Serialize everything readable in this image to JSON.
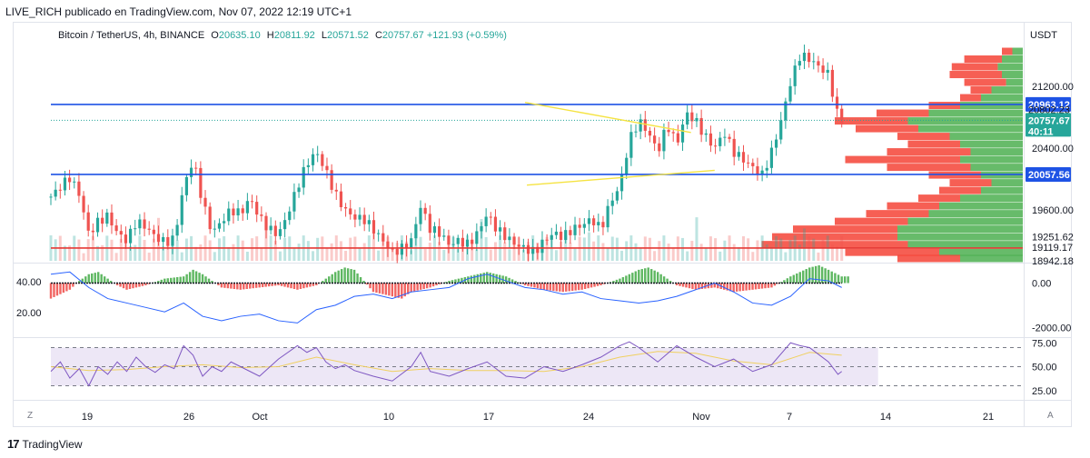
{
  "caption": "LIVE_RICH publicado en TradingView.com, Nov 07, 2022 12:19 UTC+1",
  "footer": {
    "logo": "17",
    "brand": "TradingView"
  },
  "legend": {
    "symbol": "Bitcoin / TetherUS, 4h, BINANCE",
    "o_label": "O",
    "o": "20635.10",
    "h_label": "H",
    "h": "20811.92",
    "l_label": "L",
    "l": "20571.52",
    "c_label": "C",
    "c": "20757.67",
    "change": "+121.93 (+0.59%)"
  },
  "buttons": {
    "zoom": "Z",
    "auto": "A"
  },
  "colors": {
    "up": "#26a69a",
    "down": "#ef5350",
    "blue": "#1e53e5",
    "red": "#e53935",
    "yellow": "#f5e342",
    "macd_line": "#2962ff",
    "rsi_line": "#7e57c2",
    "rsi_ma": "#f0d060",
    "rsi_band": "#ede7f6",
    "vp_up": "#4caf50",
    "vp_down": "#f44336"
  },
  "chart_data": [
    {
      "type": "candlestick",
      "currency": "USDT",
      "y_ticks": [
        "21200.00",
        "20400.00",
        "19600.00",
        "19251.62",
        "19119.17",
        "18942.18"
      ],
      "x_ticks": [
        "19",
        "26",
        "Oct",
        "10",
        "17",
        "24",
        "Nov",
        "7",
        "14",
        "21"
      ],
      "ylim": [
        18940,
        21750
      ],
      "levels": [
        {
          "price": 20963.12,
          "label": "20963.12",
          "color": "#1e53e5"
        },
        {
          "price": 20057.56,
          "label": "20057.56",
          "color": "#1e53e5"
        },
        {
          "price": 19105,
          "label": "",
          "color": "#e53935"
        }
      ],
      "last_price": {
        "price": 20757.67,
        "label": "20757.67",
        "countdown": "40:11",
        "hidden_label": "20802.23"
      },
      "trendlines": [
        {
          "x1": 0.5,
          "y1": 20990,
          "x2": 0.675,
          "y2": 20600
        },
        {
          "x1": 0.502,
          "y1": 19920,
          "x2": 0.7,
          "y2": 20110
        }
      ],
      "close_path": [
        [
          0.0,
          19770
        ],
        [
          0.01,
          19900
        ],
        [
          0.02,
          20020
        ],
        [
          0.03,
          19800
        ],
        [
          0.04,
          19280
        ],
        [
          0.05,
          19450
        ],
        [
          0.06,
          19520
        ],
        [
          0.07,
          19300
        ],
        [
          0.08,
          19200
        ],
        [
          0.09,
          19450
        ],
        [
          0.1,
          19380
        ],
        [
          0.11,
          19250
        ],
        [
          0.12,
          19180
        ],
        [
          0.13,
          19220
        ],
        [
          0.14,
          19900
        ],
        [
          0.15,
          20250
        ],
        [
          0.16,
          19700
        ],
        [
          0.17,
          19300
        ],
        [
          0.18,
          19450
        ],
        [
          0.19,
          19600
        ],
        [
          0.2,
          19550
        ],
        [
          0.21,
          19750
        ],
        [
          0.22,
          19500
        ],
        [
          0.23,
          19350
        ],
        [
          0.24,
          19280
        ],
        [
          0.25,
          19550
        ],
        [
          0.26,
          19900
        ],
        [
          0.27,
          20200
        ],
        [
          0.28,
          20350
        ],
        [
          0.29,
          20100
        ],
        [
          0.3,
          19800
        ],
        [
          0.31,
          19600
        ],
        [
          0.32,
          19500
        ],
        [
          0.33,
          19480
        ],
        [
          0.34,
          19350
        ],
        [
          0.35,
          19200
        ],
        [
          0.36,
          19050
        ],
        [
          0.37,
          19100
        ],
        [
          0.38,
          19200
        ],
        [
          0.39,
          19650
        ],
        [
          0.4,
          19350
        ],
        [
          0.41,
          19300
        ],
        [
          0.42,
          19150
        ],
        [
          0.43,
          19200
        ],
        [
          0.44,
          19150
        ],
        [
          0.45,
          19300
        ],
        [
          0.46,
          19550
        ],
        [
          0.47,
          19350
        ],
        [
          0.48,
          19250
        ],
        [
          0.49,
          19150
        ],
        [
          0.5,
          19100
        ],
        [
          0.51,
          19050
        ],
        [
          0.52,
          19200
        ],
        [
          0.53,
          19300
        ],
        [
          0.54,
          19250
        ],
        [
          0.55,
          19350
        ],
        [
          0.56,
          19400
        ],
        [
          0.57,
          19480
        ],
        [
          0.58,
          19350
        ],
        [
          0.59,
          19700
        ],
        [
          0.6,
          19900
        ],
        [
          0.61,
          20500
        ],
        [
          0.62,
          20750
        ],
        [
          0.63,
          20600
        ],
        [
          0.64,
          20350
        ],
        [
          0.65,
          20700
        ],
        [
          0.66,
          20450
        ],
        [
          0.67,
          20850
        ],
        [
          0.68,
          20750
        ],
        [
          0.69,
          20550
        ],
        [
          0.7,
          20400
        ],
        [
          0.71,
          20600
        ],
        [
          0.72,
          20350
        ],
        [
          0.73,
          20250
        ],
        [
          0.74,
          20150
        ],
        [
          0.75,
          20050
        ],
        [
          0.76,
          20350
        ],
        [
          0.77,
          20750
        ],
        [
          0.78,
          21250
        ],
        [
          0.79,
          21600
        ],
        [
          0.8,
          21550
        ],
        [
          0.81,
          21450
        ],
        [
          0.82,
          21350
        ],
        [
          0.83,
          20800
        ],
        [
          0.834,
          20757
        ]
      ],
      "volume_profile_note": "horizontal histogram at right edge",
      "volume_profile": [
        [
          21650,
          0.05,
          0.05
        ],
        [
          21550,
          0.1,
          0.18
        ],
        [
          21450,
          0.12,
          0.22
        ],
        [
          21350,
          0.1,
          0.25
        ],
        [
          21250,
          0.08,
          0.2
        ],
        [
          21150,
          0.15,
          0.1
        ],
        [
          21050,
          0.2,
          0.1
        ],
        [
          20950,
          0.3,
          0.15
        ],
        [
          20850,
          0.45,
          0.25
        ],
        [
          20750,
          0.55,
          0.35
        ],
        [
          20650,
          0.5,
          0.3
        ],
        [
          20550,
          0.35,
          0.25
        ],
        [
          20450,
          0.3,
          0.25
        ],
        [
          20350,
          0.25,
          0.4
        ],
        [
          20250,
          0.3,
          0.55
        ],
        [
          20150,
          0.25,
          0.4
        ],
        [
          20050,
          0.2,
          0.25
        ],
        [
          19950,
          0.15,
          0.2
        ],
        [
          19850,
          0.2,
          0.2
        ],
        [
          19750,
          0.3,
          0.2
        ],
        [
          19650,
          0.4,
          0.25
        ],
        [
          19550,
          0.45,
          0.3
        ],
        [
          19450,
          0.55,
          0.35
        ],
        [
          19350,
          0.6,
          0.5
        ],
        [
          19250,
          0.6,
          0.6
        ],
        [
          19150,
          0.55,
          0.7
        ],
        [
          19050,
          0.4,
          0.45
        ],
        [
          18970,
          0.3,
          0.3
        ]
      ]
    },
    {
      "type": "macd",
      "left_ticks": [
        "40.00",
        "20.00"
      ],
      "right_ticks": [
        "0.00",
        "-2000.00"
      ],
      "ylim": [
        -2400,
        800
      ],
      "line": [
        [
          0.0,
          400
        ],
        [
          0.02,
          500
        ],
        [
          0.04,
          -200
        ],
        [
          0.06,
          -700
        ],
        [
          0.08,
          -900
        ],
        [
          0.1,
          -1100
        ],
        [
          0.12,
          -1300
        ],
        [
          0.14,
          -900
        ],
        [
          0.16,
          -1500
        ],
        [
          0.18,
          -1700
        ],
        [
          0.2,
          -1500
        ],
        [
          0.22,
          -1400
        ],
        [
          0.24,
          -1700
        ],
        [
          0.26,
          -1800
        ],
        [
          0.28,
          -1200
        ],
        [
          0.3,
          -1000
        ],
        [
          0.32,
          -600
        ],
        [
          0.34,
          -500
        ],
        [
          0.36,
          -700
        ],
        [
          0.38,
          -400
        ],
        [
          0.4,
          -300
        ],
        [
          0.42,
          -200
        ],
        [
          0.44,
          200
        ],
        [
          0.46,
          400
        ],
        [
          0.48,
          100
        ],
        [
          0.5,
          -200
        ],
        [
          0.52,
          -300
        ],
        [
          0.54,
          -500
        ],
        [
          0.56,
          -400
        ],
        [
          0.58,
          -700
        ],
        [
          0.6,
          -800
        ],
        [
          0.62,
          -900
        ],
        [
          0.64,
          -800
        ],
        [
          0.66,
          -600
        ],
        [
          0.68,
          -300
        ],
        [
          0.7,
          0
        ],
        [
          0.72,
          -400
        ],
        [
          0.74,
          -900
        ],
        [
          0.76,
          -1000
        ],
        [
          0.78,
          -600
        ],
        [
          0.8,
          200
        ],
        [
          0.82,
          100
        ],
        [
          0.834,
          -200
        ]
      ],
      "histogram": [
        [
          0.0,
          -700
        ],
        [
          0.01,
          -500
        ],
        [
          0.02,
          -300
        ],
        [
          0.03,
          100
        ],
        [
          0.04,
          400
        ],
        [
          0.05,
          500
        ],
        [
          0.06,
          200
        ],
        [
          0.07,
          -100
        ],
        [
          0.08,
          -300
        ],
        [
          0.09,
          -200
        ],
        [
          0.1,
          -100
        ],
        [
          0.12,
          200
        ],
        [
          0.14,
          300
        ],
        [
          0.15,
          600
        ],
        [
          0.16,
          400
        ],
        [
          0.18,
          -200
        ],
        [
          0.2,
          -300
        ],
        [
          0.22,
          -200
        ],
        [
          0.24,
          -100
        ],
        [
          0.26,
          -300
        ],
        [
          0.28,
          -100
        ],
        [
          0.3,
          500
        ],
        [
          0.31,
          700
        ],
        [
          0.32,
          600
        ],
        [
          0.34,
          -400
        ],
        [
          0.36,
          -600
        ],
        [
          0.37,
          -700
        ],
        [
          0.38,
          -400
        ],
        [
          0.4,
          -200
        ],
        [
          0.42,
          100
        ],
        [
          0.44,
          300
        ],
        [
          0.46,
          500
        ],
        [
          0.48,
          300
        ],
        [
          0.5,
          -100
        ],
        [
          0.52,
          -300
        ],
        [
          0.54,
          -400
        ],
        [
          0.56,
          -300
        ],
        [
          0.58,
          -100
        ],
        [
          0.6,
          200
        ],
        [
          0.62,
          600
        ],
        [
          0.63,
          700
        ],
        [
          0.64,
          500
        ],
        [
          0.66,
          -100
        ],
        [
          0.68,
          -300
        ],
        [
          0.7,
          -200
        ],
        [
          0.72,
          -400
        ],
        [
          0.74,
          -300
        ],
        [
          0.76,
          -200
        ],
        [
          0.78,
          300
        ],
        [
          0.8,
          700
        ],
        [
          0.81,
          800
        ],
        [
          0.82,
          600
        ],
        [
          0.834,
          300
        ]
      ]
    },
    {
      "type": "rsi",
      "right_ticks": [
        "75.00",
        "50.00",
        "25.00"
      ],
      "ylim": [
        20,
        80
      ],
      "band": [
        30,
        70
      ],
      "line": [
        [
          0.0,
          45
        ],
        [
          0.01,
          55
        ],
        [
          0.02,
          38
        ],
        [
          0.03,
          48
        ],
        [
          0.04,
          30
        ],
        [
          0.05,
          50
        ],
        [
          0.06,
          42
        ],
        [
          0.07,
          55
        ],
        [
          0.08,
          45
        ],
        [
          0.09,
          60
        ],
        [
          0.1,
          50
        ],
        [
          0.11,
          44
        ],
        [
          0.12,
          52
        ],
        [
          0.13,
          48
        ],
        [
          0.14,
          72
        ],
        [
          0.15,
          62
        ],
        [
          0.16,
          40
        ],
        [
          0.17,
          50
        ],
        [
          0.18,
          45
        ],
        [
          0.19,
          55
        ],
        [
          0.2,
          50
        ],
        [
          0.22,
          40
        ],
        [
          0.24,
          58
        ],
        [
          0.26,
          72
        ],
        [
          0.27,
          65
        ],
        [
          0.28,
          70
        ],
        [
          0.29,
          55
        ],
        [
          0.3,
          48
        ],
        [
          0.31,
          52
        ],
        [
          0.32,
          46
        ],
        [
          0.34,
          40
        ],
        [
          0.36,
          35
        ],
        [
          0.38,
          50
        ],
        [
          0.39,
          65
        ],
        [
          0.4,
          45
        ],
        [
          0.42,
          40
        ],
        [
          0.44,
          48
        ],
        [
          0.46,
          55
        ],
        [
          0.48,
          40
        ],
        [
          0.5,
          38
        ],
        [
          0.52,
          50
        ],
        [
          0.54,
          45
        ],
        [
          0.56,
          52
        ],
        [
          0.58,
          60
        ],
        [
          0.6,
          72
        ],
        [
          0.61,
          76
        ],
        [
          0.62,
          70
        ],
        [
          0.64,
          55
        ],
        [
          0.66,
          72
        ],
        [
          0.68,
          60
        ],
        [
          0.7,
          50
        ],
        [
          0.72,
          58
        ],
        [
          0.74,
          45
        ],
        [
          0.76,
          52
        ],
        [
          0.78,
          75
        ],
        [
          0.79,
          72
        ],
        [
          0.8,
          70
        ],
        [
          0.82,
          55
        ],
        [
          0.83,
          42
        ],
        [
          0.834,
          45
        ]
      ],
      "ma": [
        [
          0.0,
          50
        ],
        [
          0.04,
          46
        ],
        [
          0.08,
          47
        ],
        [
          0.12,
          50
        ],
        [
          0.16,
          52
        ],
        [
          0.2,
          49
        ],
        [
          0.24,
          50
        ],
        [
          0.28,
          60
        ],
        [
          0.32,
          52
        ],
        [
          0.36,
          45
        ],
        [
          0.4,
          48
        ],
        [
          0.44,
          46
        ],
        [
          0.48,
          46
        ],
        [
          0.52,
          45
        ],
        [
          0.56,
          50
        ],
        [
          0.6,
          60
        ],
        [
          0.64,
          66
        ],
        [
          0.68,
          64
        ],
        [
          0.72,
          56
        ],
        [
          0.76,
          52
        ],
        [
          0.8,
          65
        ],
        [
          0.834,
          62
        ]
      ]
    }
  ]
}
